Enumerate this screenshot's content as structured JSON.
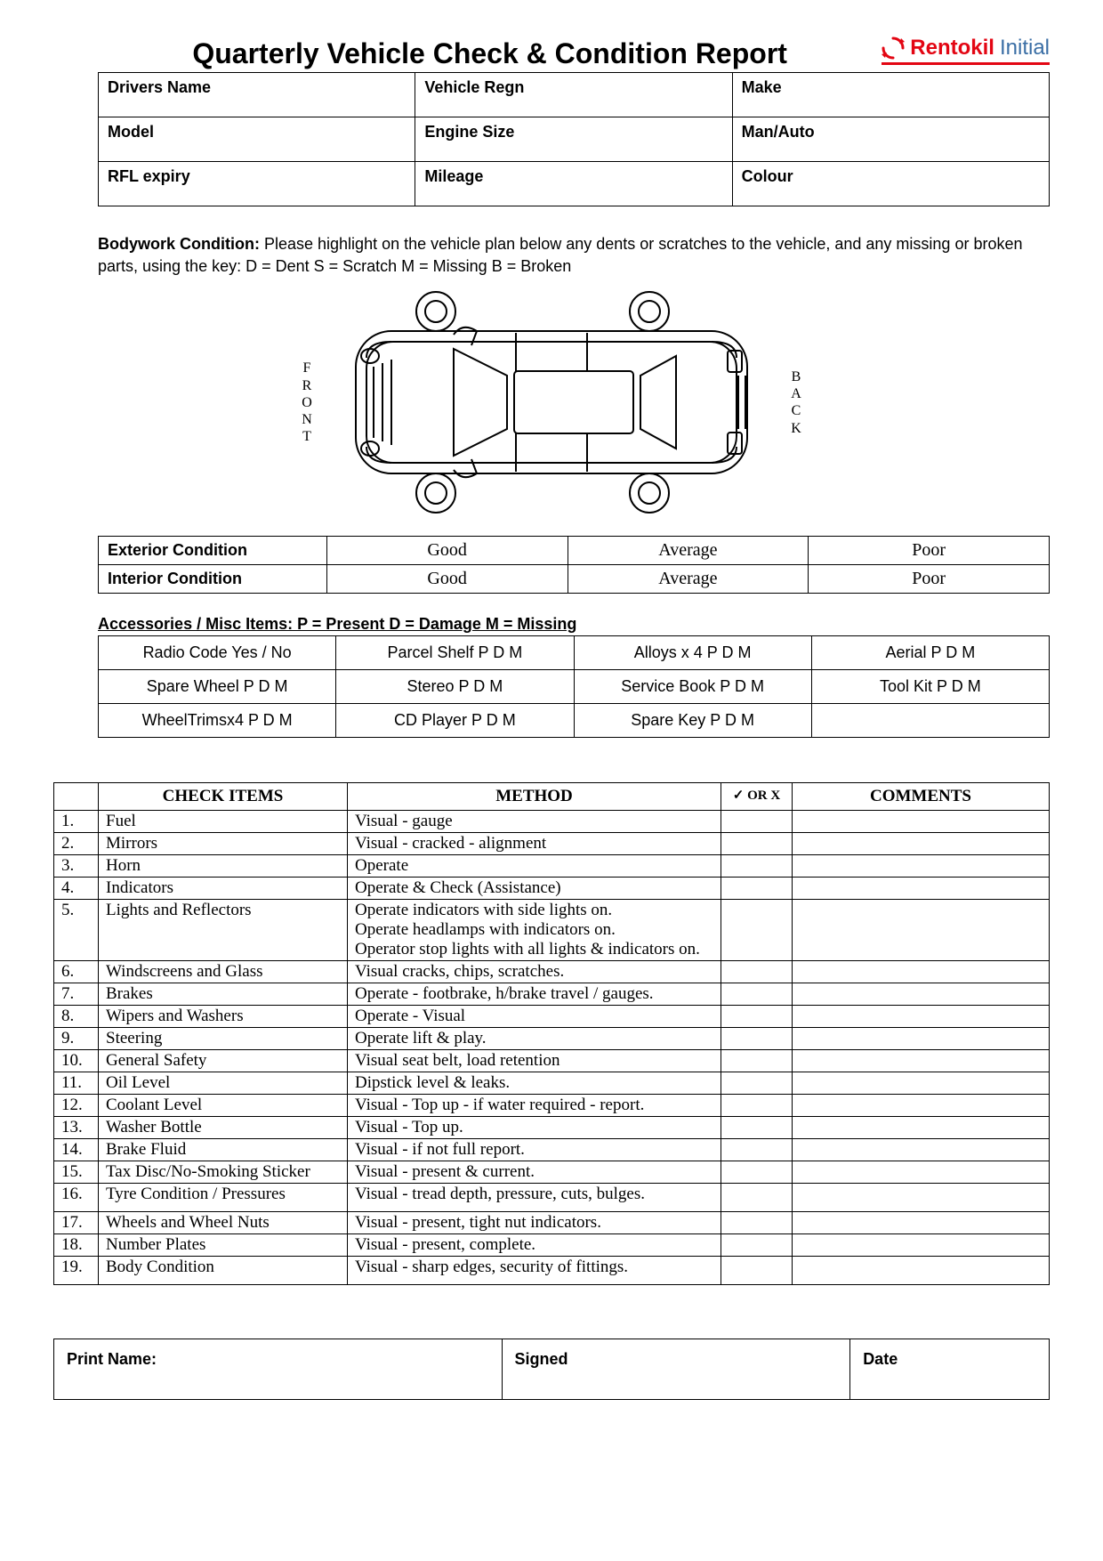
{
  "page": {
    "title": "Quarterly Vehicle Check & Condition Report",
    "logo": {
      "brand1": "Rentokil",
      "brand2": "Initial"
    }
  },
  "info_fields": {
    "row1": [
      "Drivers Name",
      "Vehicle Regn",
      "Make"
    ],
    "row2": [
      "Model",
      "Engine Size",
      "Man/Auto"
    ],
    "row3": [
      "RFL expiry",
      "Mileage",
      "Colour"
    ]
  },
  "bodywork": {
    "label": "Bodywork Condition:",
    "text": " Please highlight on the vehicle plan below any dents or scratches to the vehicle, and any missing or broken parts, using the key: D = Dent S = Scratch M = Missing B = Broken"
  },
  "diagram_labels": {
    "front": [
      "F",
      "R",
      "O",
      "N",
      "T"
    ],
    "back": [
      "B",
      "A",
      "C",
      "K"
    ]
  },
  "condition": {
    "rows": [
      {
        "label": "Exterior Condition",
        "opts": [
          "Good",
          "Average",
          "Poor"
        ]
      },
      {
        "label": "Interior Condition",
        "opts": [
          "Good",
          "Average",
          "Poor"
        ]
      }
    ]
  },
  "accessories": {
    "header": "Accessories / Misc Items: P = Present D = Damage M = Missing",
    "rows": [
      [
        "Radio Code Yes / No",
        "Parcel Shelf P D M",
        "Alloys x 4 P D M",
        "Aerial P D M"
      ],
      [
        "Spare Wheel P D M",
        "Stereo P D M",
        "Service Book P D M",
        "Tool Kit P D M"
      ],
      [
        "WheelTrimsx4 P D M",
        "CD Player P D M",
        "Spare Key P D M",
        ""
      ]
    ]
  },
  "check": {
    "headers": {
      "items": "CHECK ITEMS",
      "method": "METHOD",
      "mark": "✓ OR X",
      "comments": "COMMENTS"
    },
    "rows": [
      {
        "n": "1.",
        "item": "Fuel",
        "method": "Visual - gauge"
      },
      {
        "n": "2.",
        "item": "Mirrors",
        "method": "Visual - cracked - alignment"
      },
      {
        "n": "3.",
        "item": "Horn",
        "method": "Operate"
      },
      {
        "n": "4.",
        "item": "Indicators",
        "method": "Operate & Check (Assistance)"
      },
      {
        "n": "5.",
        "item": "Lights and Reflectors",
        "method": "Operate indicators with side lights on.\nOperate headlamps with indicators on.\nOperator stop lights with all lights & indicators on."
      },
      {
        "n": "6.",
        "item": "Windscreens and Glass",
        "method": "Visual cracks, chips, scratches."
      },
      {
        "n": "7.",
        "item": "Brakes",
        "method": "Operate - footbrake, h/brake travel / gauges."
      },
      {
        "n": "8.",
        "item": "Wipers and Washers",
        "method": "Operate - Visual"
      },
      {
        "n": "9.",
        "item": "Steering",
        "method": "Operate lift & play."
      },
      {
        "n": "10.",
        "item": "General Safety",
        "method": "Visual seat belt, load retention"
      },
      {
        "n": "11.",
        "item": "Oil Level",
        "method": "Dipstick level & leaks."
      },
      {
        "n": "12.",
        "item": "Coolant Level",
        "method": "Visual - Top up - if water required - report."
      },
      {
        "n": "13.",
        "item": "Washer Bottle",
        "method": "Visual - Top up."
      },
      {
        "n": "14.",
        "item": "Brake Fluid",
        "method": "Visual - if not full report."
      },
      {
        "n": "15.",
        "item": "Tax Disc/No-Smoking Sticker",
        "method": "Visual - present & current."
      },
      {
        "n": "16.",
        "item": "Tyre Condition / Pressures",
        "method": "Visual - tread depth, pressure, cuts, bulges.",
        "tall": true
      },
      {
        "n": "17.",
        "item": "Wheels and Wheel Nuts",
        "method": "Visual - present, tight nut indicators."
      },
      {
        "n": "18.",
        "item": "Number Plates",
        "method": "Visual - present, complete."
      },
      {
        "n": "19.",
        "item": "Body Condition",
        "method": "Visual - sharp edges, security of fittings.",
        "tall": true
      }
    ]
  },
  "signature": {
    "name": "Print Name:",
    "signed": "Signed",
    "date": "Date"
  },
  "colors": {
    "brand_red": "#e30613",
    "brand_blue": "#3a6ea5",
    "border": "#000000"
  }
}
